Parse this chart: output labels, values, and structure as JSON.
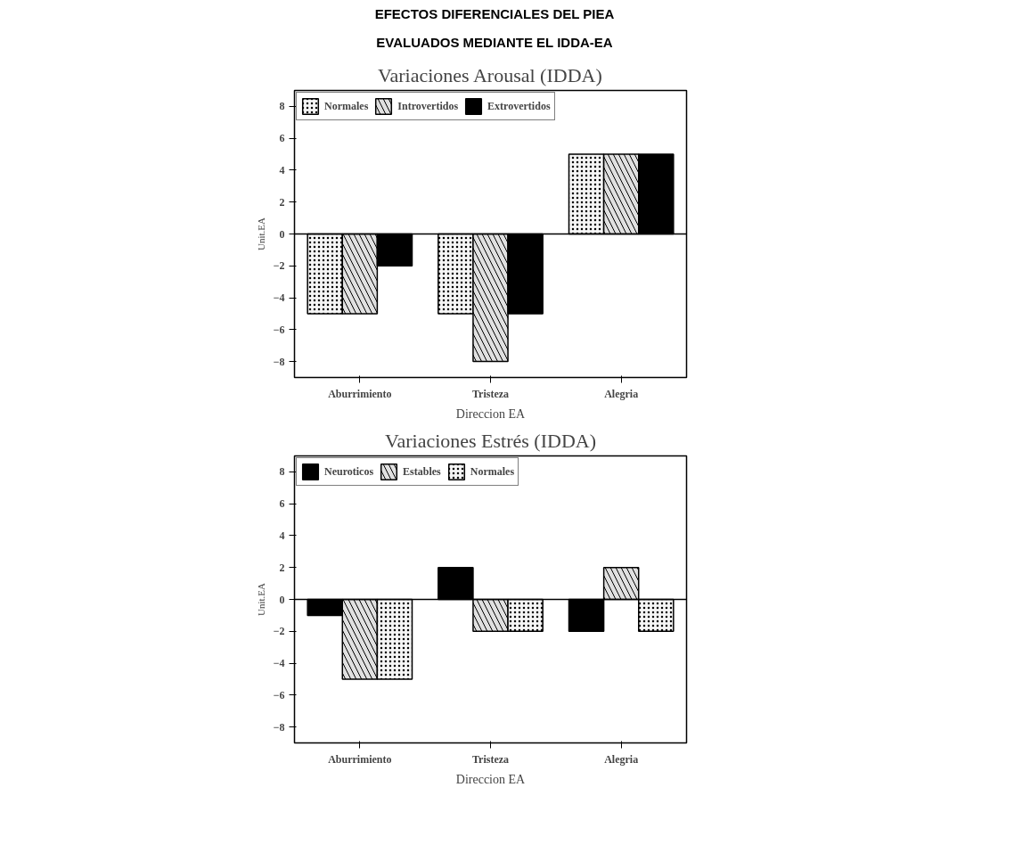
{
  "chart_data": [
    {
      "type": "bar",
      "title": "Variaciones Arousal (IDDA)",
      "annotations": [
        "EFECTOS DIFERENCIALES DEL PIEA",
        "EVALUADOS MEDIANTE EL IDDA-EA"
      ],
      "xlabel": "Direccion EA",
      "ylabel": "Unit.EA",
      "categories": [
        "Aburrimiento",
        "Tristeza",
        "Alegria"
      ],
      "series": [
        {
          "name": "Normales",
          "color": "#f5f5f5",
          "values": [
            -5,
            -5,
            5
          ]
        },
        {
          "name": "Introvertidos",
          "color": "#e0e0e0",
          "values": [
            -5,
            -8,
            5
          ]
        },
        {
          "name": "Extrovertidos",
          "color": "#000000",
          "values": [
            -2,
            -5,
            5
          ]
        }
      ],
      "ylim": [
        -9,
        9
      ],
      "yticks": [
        -8,
        -6,
        -4,
        -2,
        0,
        2,
        4,
        6,
        8
      ],
      "grid": false,
      "legend": "top left",
      "ref_lines": [
        {
          "axis": "y",
          "value": 0
        }
      ]
    },
    {
      "type": "bar",
      "title": "Variaciones Estrés (IDDA)",
      "xlabel": "Direccion EA",
      "ylabel": "Unit.EA",
      "categories": [
        "Aburrimiento",
        "Tristeza",
        "Alegria"
      ],
      "series": [
        {
          "name": "Neuroticos",
          "color": "#000000",
          "values": [
            -1,
            2,
            -2
          ]
        },
        {
          "name": "Estables",
          "color": "#e0e0e0",
          "values": [
            -5,
            -2,
            2
          ]
        },
        {
          "name": "Normales",
          "color": "#f5f5f5",
          "values": [
            -5,
            -2,
            -2
          ]
        }
      ],
      "ylim": [
        -9,
        9
      ],
      "yticks": [
        -8,
        -6,
        -4,
        -2,
        0,
        2,
        4,
        6,
        8
      ],
      "grid": false,
      "legend": "top left",
      "ref_lines": [
        {
          "axis": "y",
          "value": 0
        }
      ]
    }
  ]
}
